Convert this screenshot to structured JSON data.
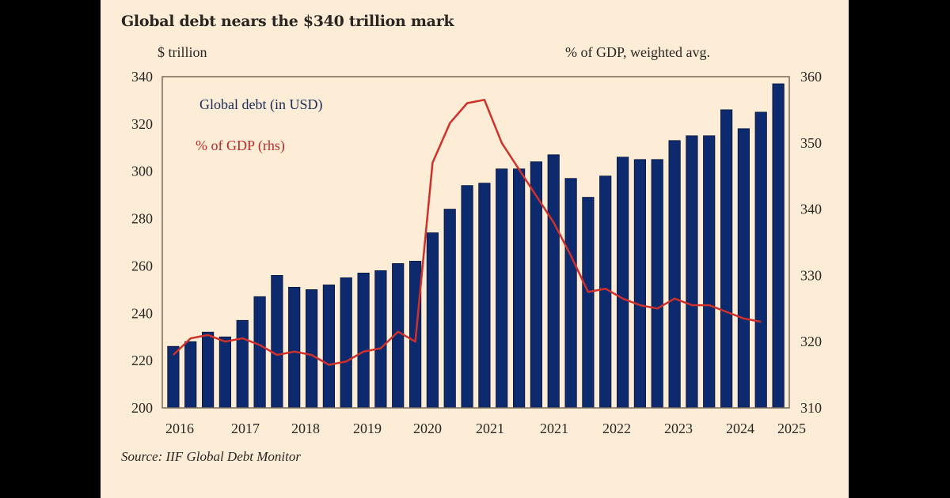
{
  "colors": {
    "background": "#fdecd6",
    "bar": "#0d2a6e",
    "line": "#d0302a",
    "text": "#2a2622"
  },
  "chart_data": {
    "type": "bar",
    "title": "Global debt nears the $340 trillion mark",
    "ylabel": "$ trillion",
    "ylabel_right": "% of GDP, weighted avg.",
    "source": "Source: IIF Global Debt Monitor",
    "ylim": [
      200,
      340
    ],
    "ylim_right": [
      310,
      360
    ],
    "yticks": [
      200,
      220,
      240,
      260,
      280,
      300,
      320,
      340
    ],
    "yticks_right": [
      310,
      320,
      330,
      340,
      350,
      360
    ],
    "xtick_labels": [
      "2016",
      "2017",
      "2018",
      "2019",
      "2020",
      "2021",
      "2021",
      "2022",
      "2023",
      "2024",
      "2025"
    ],
    "legend": [
      "Global debt (in USD)",
      "% of GDP (rhs)"
    ],
    "legend_position": "top-left",
    "grid": false,
    "series": [
      {
        "name": "Global debt (in USD)",
        "type": "bar",
        "axis": "left",
        "values": [
          226,
          228,
          232,
          230,
          237,
          247,
          256,
          251,
          250,
          252,
          255,
          257,
          258,
          261,
          262,
          274,
          284,
          294,
          295,
          301,
          301,
          304,
          307,
          297,
          289,
          298,
          306,
          305,
          305,
          313,
          315,
          315,
          326,
          318,
          325,
          337
        ]
      },
      {
        "name": "% of GDP (rhs)",
        "type": "line",
        "axis": "right",
        "values": [
          318,
          320.5,
          321,
          320,
          320.5,
          319.5,
          318,
          318.5,
          318,
          316.5,
          317,
          318.5,
          319,
          321.5,
          320,
          347,
          353,
          356,
          356.5,
          350,
          346,
          342,
          338,
          333,
          327.5,
          328,
          326.5,
          325.5,
          325,
          326.5,
          325.5,
          325.5,
          324.5,
          323.5,
          323,
          null
        ]
      }
    ]
  }
}
